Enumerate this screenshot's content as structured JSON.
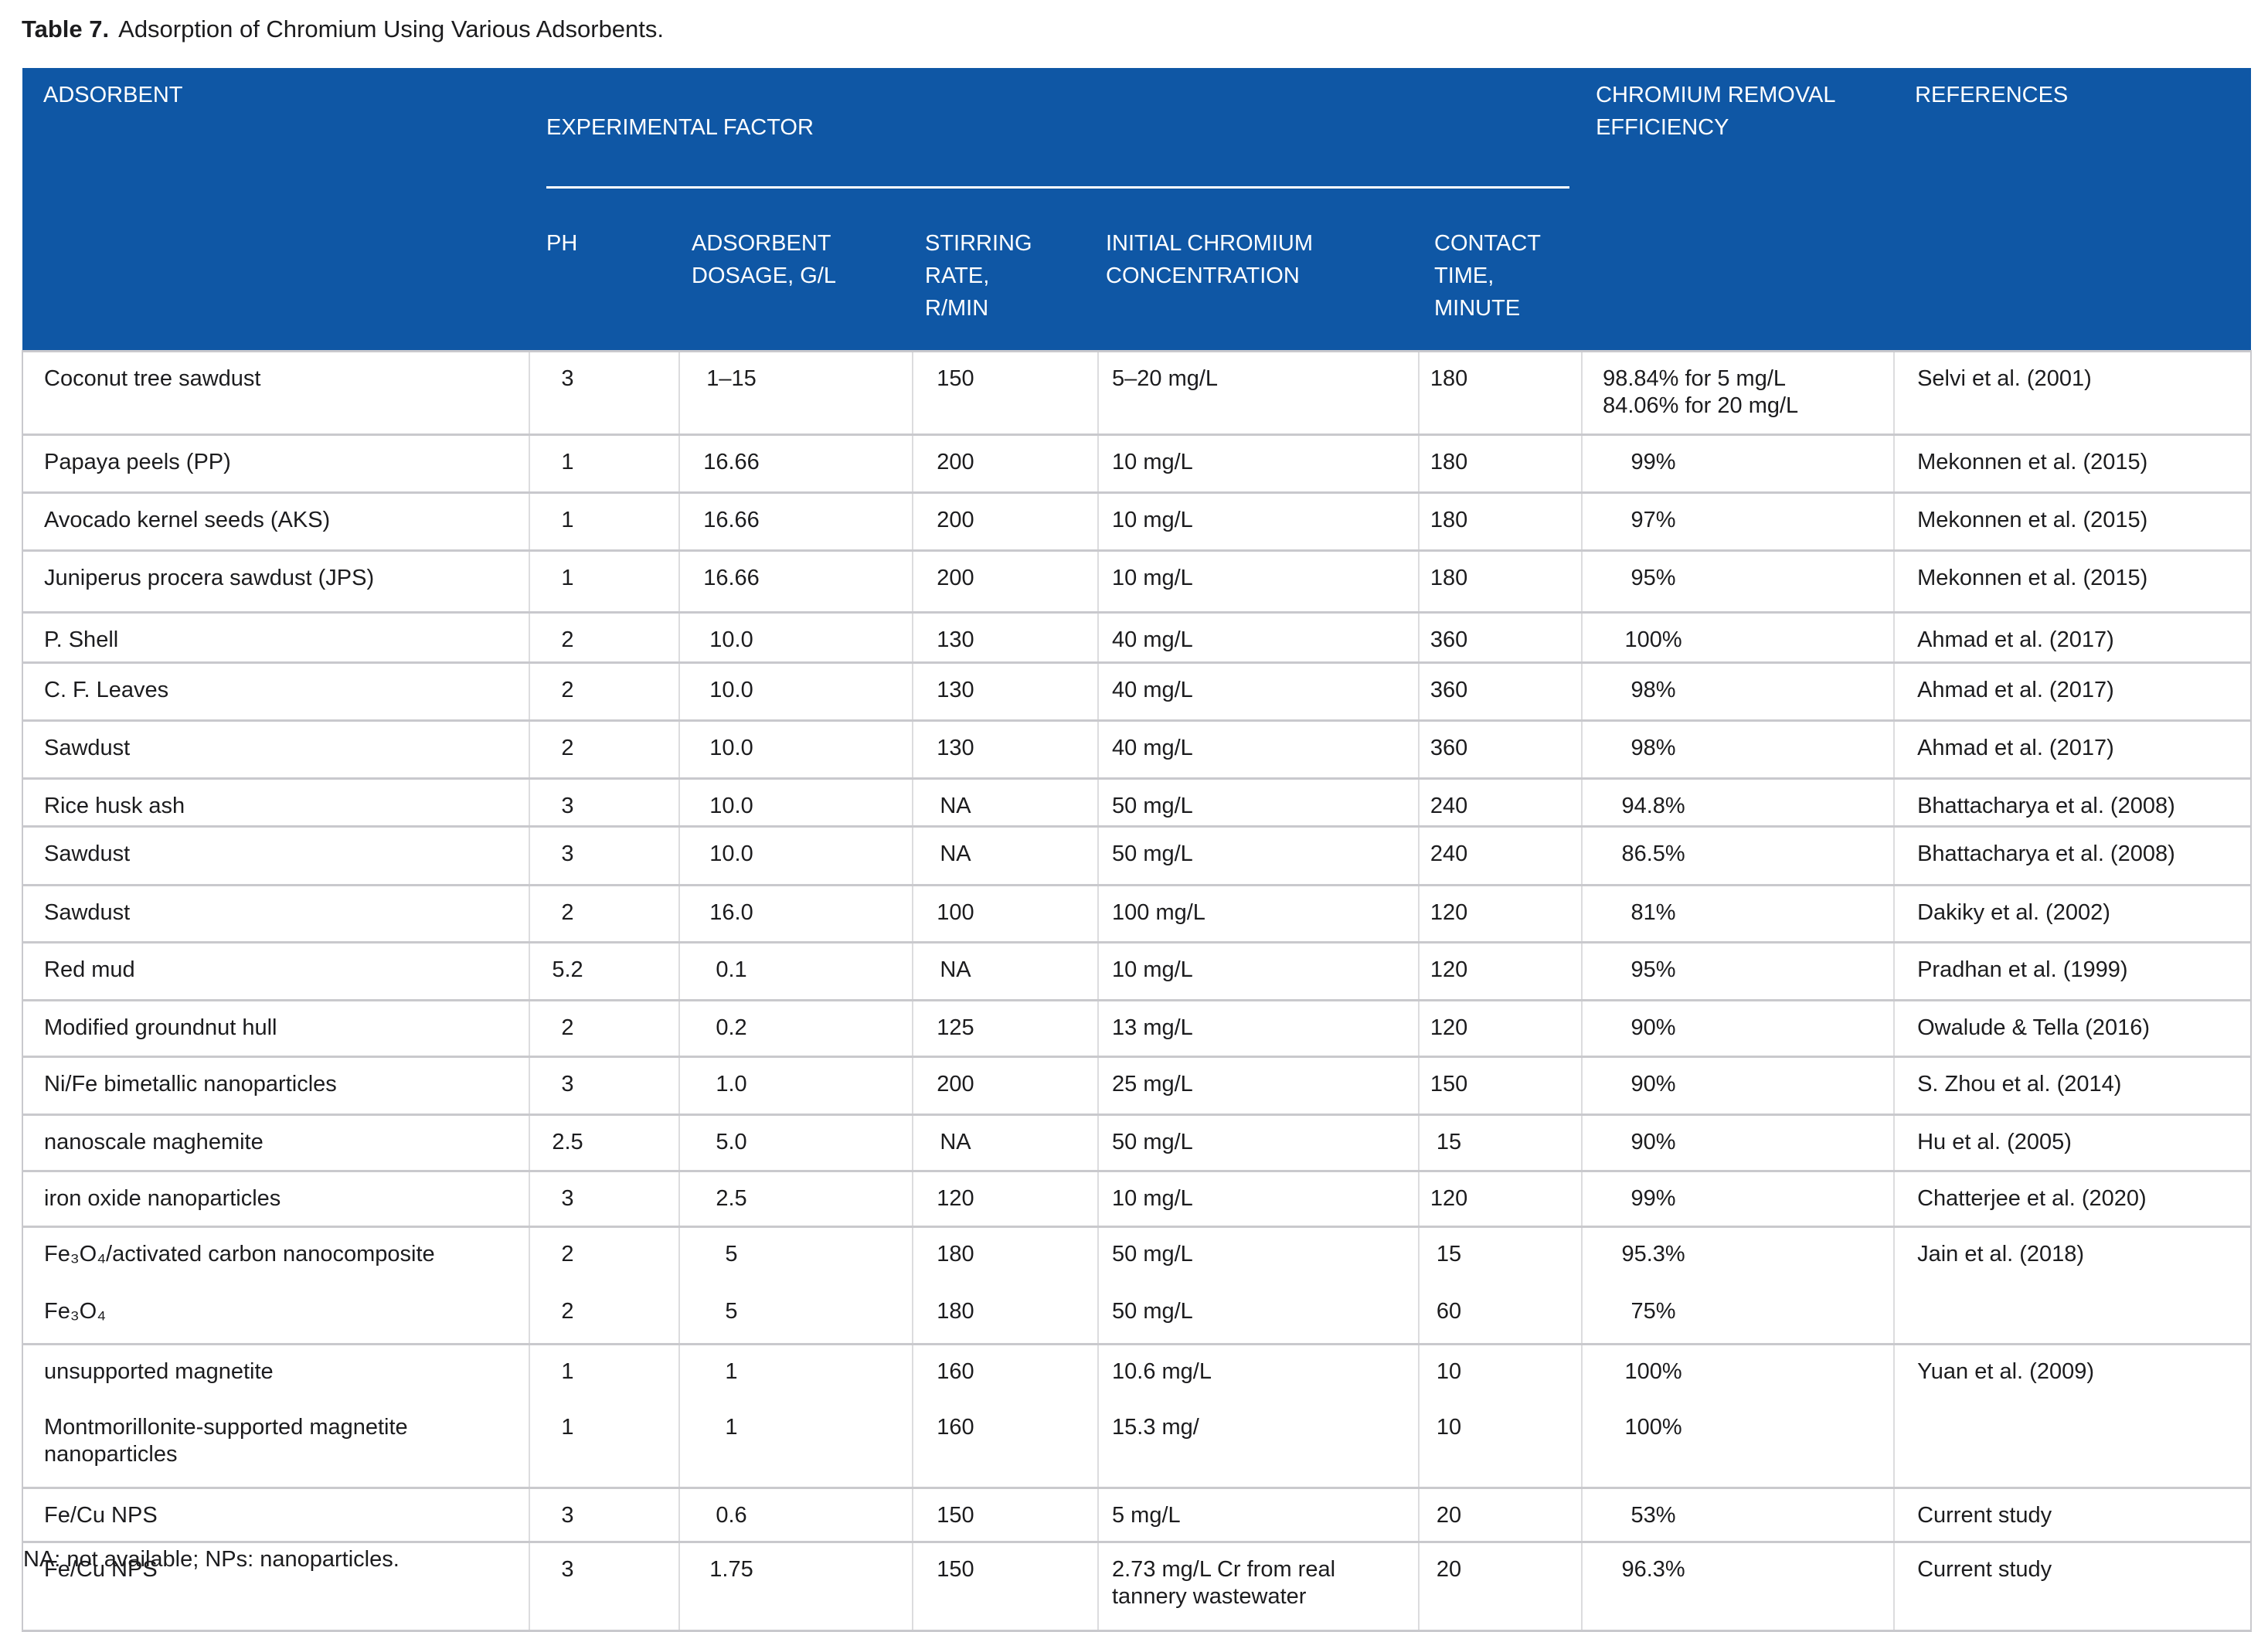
{
  "title": {
    "prefix": "Table 7.",
    "text": "Adsorption of Chromium Using Various Adsorbents."
  },
  "footnote": "NA: not available; NPs: nanoparticles.",
  "colors": {
    "header_bg": "#0F57A5",
    "header_text": "#FFFFFF",
    "body_text": "#1C1C1E",
    "row_divider": "#C9C9CD",
    "column_divider": "#DCDCDE"
  },
  "table": {
    "headers": {
      "adsorbent": "ADSORBENT",
      "experimental_factor": "EXPERIMENTAL FACTOR",
      "ph": "PH",
      "dosage": "ADSORBENT\nDOSAGE, G/L",
      "stirring": "STIRRING\nRATE,\nR/MIN",
      "concentration": "INITIAL CHROMIUM\nCONCENTRATION",
      "contact": "CONTACT\nTIME,\nMINUTE",
      "efficiency": "CHROMIUM REMOVAL\nEFFICIENCY",
      "references": "REFERENCES"
    },
    "rows": [
      {
        "adsorbent": "Coconut tree sawdust",
        "ph": "3",
        "dosage": "1–15",
        "stirring": "150",
        "concentration": "5–20 mg/L",
        "contact": "180",
        "efficiency": "98.84% for 5 mg/L\n84.06% for 20 mg/L",
        "references": "Selvi et al. (2001)",
        "sep": true
      },
      {
        "adsorbent": "Papaya peels (PP)",
        "ph": "1",
        "dosage": "16.66",
        "stirring": "200",
        "concentration": "10 mg/L",
        "contact": "180",
        "efficiency": "99%",
        "references": "Mekonnen et al. (2015)",
        "sep": true
      },
      {
        "adsorbent": "Avocado kernel seeds (AKS)",
        "ph": "1",
        "dosage": "16.66",
        "stirring": "200",
        "concentration": "10 mg/L",
        "contact": "180",
        "efficiency": "97%",
        "references": "Mekonnen et al. (2015)",
        "sep": true
      },
      {
        "adsorbent": "Juniperus procera sawdust (JPS)",
        "ph": "1",
        "dosage": "16.66",
        "stirring": "200",
        "concentration": "10 mg/L",
        "contact": "180",
        "efficiency": "95%",
        "references": "Mekonnen et al. (2015)",
        "sep": true
      },
      {
        "adsorbent": "P. Shell",
        "ph": "2",
        "dosage": "10.0",
        "stirring": "130",
        "concentration": "40 mg/L",
        "contact": "360",
        "efficiency": "100%",
        "references": "Ahmad et al. (2017)",
        "sep": true
      },
      {
        "adsorbent": "C. F. Leaves",
        "ph": "2",
        "dosage": "10.0",
        "stirring": "130",
        "concentration": "40 mg/L",
        "contact": "360",
        "efficiency": "98%",
        "references": "Ahmad et al. (2017)",
        "sep": true
      },
      {
        "adsorbent": "Sawdust",
        "ph": "2",
        "dosage": "10.0",
        "stirring": "130",
        "concentration": "40 mg/L",
        "contact": "360",
        "efficiency": "98%",
        "references": "Ahmad et al. (2017)",
        "sep": true
      },
      {
        "adsorbent": "Rice husk ash",
        "ph": "3",
        "dosage": "10.0",
        "stirring": "NA",
        "concentration": "50 mg/L",
        "contact": "240",
        "efficiency": "94.8%",
        "references": "Bhattacharya et al. (2008)",
        "sep": true
      },
      {
        "adsorbent": "Sawdust",
        "ph": "3",
        "dosage": "10.0",
        "stirring": "NA",
        "concentration": "50 mg/L",
        "contact": "240",
        "efficiency": "86.5%",
        "references": "Bhattacharya et al. (2008)",
        "sep": true
      },
      {
        "adsorbent": "Sawdust",
        "ph": "2",
        "dosage": "16.0",
        "stirring": "100",
        "concentration": "100 mg/L",
        "contact": "120",
        "efficiency": "81%",
        "references": "Dakiky et al. (2002)",
        "sep": true
      },
      {
        "adsorbent": "Red mud",
        "ph": "5.2",
        "dosage": "0.1",
        "stirring": "NA",
        "concentration": "10 mg/L",
        "contact": "120",
        "efficiency": "95%",
        "references": "Pradhan et al. (1999)",
        "sep": true
      },
      {
        "adsorbent": "Modified groundnut hull",
        "ph": "2",
        "dosage": "0.2",
        "stirring": "125",
        "concentration": "13 mg/L",
        "contact": "120",
        "efficiency": "90%",
        "references": "Owalude & Tella (2016)",
        "sep": true
      },
      {
        "adsorbent": "Ni/Fe bimetallic nanoparticles",
        "ph": "3",
        "dosage": "1.0",
        "stirring": "200",
        "concentration": "25 mg/L",
        "contact": "150",
        "efficiency": "90%",
        "references": "S. Zhou et al. (2014)",
        "sep": true
      },
      {
        "adsorbent": "nanoscale maghemite",
        "ph": "2.5",
        "dosage": "5.0",
        "stirring": "NA",
        "concentration": "50 mg/L",
        "contact": "15",
        "efficiency": "90%",
        "references": "Hu et al. (2005)",
        "sep": true
      },
      {
        "adsorbent": "iron oxide nanoparticles",
        "ph": "3",
        "dosage": "2.5",
        "stirring": "120",
        "concentration": "10 mg/L",
        "contact": "120",
        "efficiency": "99%",
        "references": "Chatterjee et al. (2020)",
        "sep": true
      },
      {
        "adsorbent": "Fe₃O₄/activated carbon nanocomposite",
        "ph": "2",
        "dosage": "5",
        "stirring": "180",
        "concentration": "50 mg/L",
        "contact": "15",
        "efficiency": "95.3%",
        "references": "Jain et al. (2018)",
        "sep": true
      },
      {
        "adsorbent": "Fe₃O₄",
        "ph": "2",
        "dosage": "5",
        "stirring": "180",
        "concentration": "50 mg/L",
        "contact": "60",
        "efficiency": "75%",
        "references": "",
        "sep": false
      },
      {
        "adsorbent": "unsupported magnetite",
        "ph": "1",
        "dosage": "1",
        "stirring": "160",
        "concentration": "10.6 mg/L",
        "contact": "10",
        "efficiency": "100%",
        "references": "Yuan et al. (2009)",
        "sep": true
      },
      {
        "adsorbent": "Montmorillonite-supported magnetite\nnanoparticles",
        "ph": "1",
        "dosage": "1",
        "stirring": "160",
        "concentration": "15.3 mg/",
        "contact": "10",
        "efficiency": "100%",
        "references": "",
        "sep": false
      },
      {
        "adsorbent": "Fe/Cu NPS",
        "ph": "3",
        "dosage": "0.6",
        "stirring": "150",
        "concentration": "5 mg/L",
        "contact": "20",
        "efficiency": "53%",
        "references": "Current study",
        "sep": true
      },
      {
        "adsorbent": "Fe/Cu NPS",
        "ph": "3",
        "dosage": "1.75",
        "stirring": "150",
        "concentration": "2.73 mg/L Cr from real\ntannery wastewater",
        "contact": "20",
        "efficiency": "96.3%",
        "references": "Current study",
        "sep": true
      }
    ]
  }
}
